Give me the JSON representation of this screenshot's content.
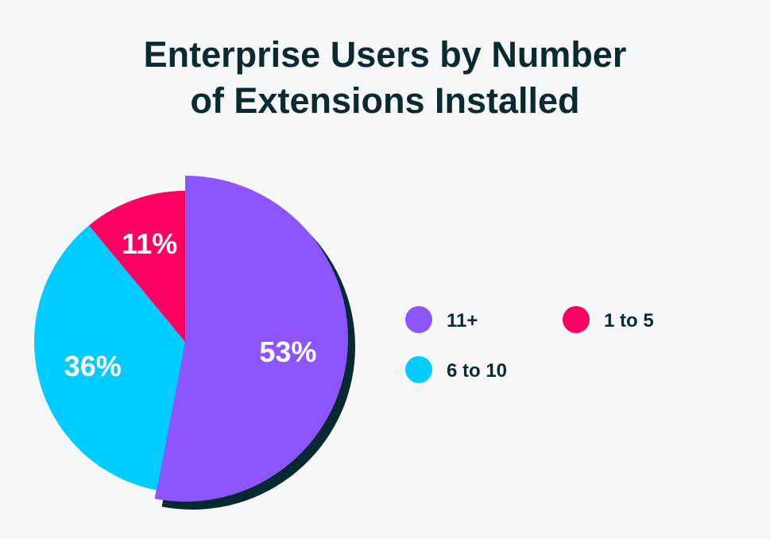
{
  "chart_data": {
    "type": "pie",
    "title": "Enterprise Users by Number of Extensions Installed",
    "title_lines": [
      "Enterprise Users by Number",
      "of Extensions Installed"
    ],
    "slices": [
      {
        "label": "11+",
        "value": 53,
        "display": "53%",
        "color": "#8b55ff",
        "exploded": true
      },
      {
        "label": "6 to 10",
        "value": 36,
        "display": "36%",
        "color": "#00ccff"
      },
      {
        "label": "1 to 5",
        "value": 11,
        "display": "11%",
        "color": "#ff0062"
      }
    ],
    "legend_order": [
      "11+",
      "1 to 5",
      "6 to 10"
    ],
    "legend_placement": "right",
    "shadow_color": "#062a30"
  }
}
